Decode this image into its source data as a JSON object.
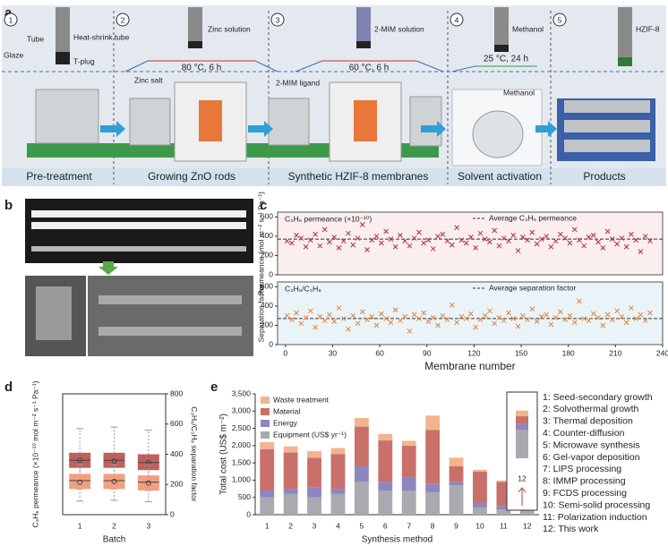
{
  "panel_labels": [
    "a",
    "b",
    "c",
    "d",
    "e"
  ],
  "panel_a": {
    "steps": [
      {
        "number": "1",
        "name": "Pre-treatment"
      },
      {
        "number": "2",
        "name": "Growing ZnO rods"
      },
      {
        "number": "3",
        "name": "Synthetic HZIF-8 membranes"
      },
      {
        "number": "4",
        "name": "Solvent activation"
      },
      {
        "number": "5",
        "name": "Products"
      }
    ],
    "labels": {
      "tube": "Tube",
      "heat_shrink": "Heat-shrink tube",
      "glaze": "Glaze",
      "t_plug": "T-plug",
      "zinc_solution": "Zinc solution",
      "zinc_salt": "Zinc salt",
      "mim_solution": "2-MIM solution",
      "mim_ligand": "2-MIM ligand",
      "methanol_top": "Methanol",
      "methanol_low": "Methanol",
      "hzif": "HZIF-8"
    },
    "conditions": [
      "80 °C, 6 h",
      "60 °C, 6 h",
      "25 °C, 24 h"
    ]
  },
  "chart_data": [
    {
      "type": "scatter",
      "annotation": "C₃H₆ permeance (×10⁻¹⁰)",
      "ylabel": "Permeance (mol m⁻² s⁻¹ Pa⁻¹)",
      "color": "#b0303a",
      "background": "#fbeeee",
      "average": 370,
      "average_label": "Average C₃H₆ permeance",
      "xlim": [
        -5,
        240
      ],
      "ylim": [
        0,
        650
      ],
      "yticks": [
        0,
        200,
        400,
        600
      ],
      "x": [
        1,
        4,
        7,
        10,
        13,
        16,
        19,
        22,
        25,
        28,
        31,
        34,
        37,
        40,
        43,
        46,
        49,
        52,
        55,
        58,
        61,
        64,
        67,
        70,
        73,
        76,
        79,
        82,
        85,
        88,
        91,
        94,
        97,
        100,
        103,
        106,
        109,
        112,
        115,
        118,
        121,
        124,
        127,
        130,
        133,
        136,
        139,
        142,
        145,
        148,
        151,
        154,
        157,
        160,
        163,
        166,
        169,
        172,
        175,
        178,
        181,
        184,
        187,
        190,
        193,
        196,
        199,
        202,
        205,
        208,
        211,
        214,
        217,
        220,
        223,
        226,
        229,
        232
      ],
      "values": [
        350,
        330,
        410,
        380,
        290,
        360,
        420,
        300,
        470,
        340,
        390,
        280,
        350,
        430,
        310,
        380,
        520,
        260,
        360,
        400,
        330,
        450,
        370,
        290,
        410,
        350,
        300,
        380,
        440,
        330,
        360,
        270,
        400,
        420,
        350,
        310,
        490,
        360,
        330,
        390,
        280,
        430,
        370,
        340,
        460,
        300,
        380,
        350,
        410,
        250,
        390,
        360,
        440,
        320,
        370,
        400,
        290,
        350,
        420,
        380,
        330,
        470,
        360,
        300,
        390,
        410,
        340,
        280,
        450,
        370,
        320,
        380,
        290,
        420,
        360,
        240,
        400,
        350
      ]
    },
    {
      "type": "scatter",
      "annotation": "C₃H₆/C₃H₈",
      "ylabel": "Separation factor",
      "xlabel": "Membrane number",
      "color": "#e8803a",
      "background": "#eaf4f8",
      "average": 270,
      "average_label": "Average separation factor",
      "xlim": [
        -5,
        240
      ],
      "ylim": [
        0,
        650
      ],
      "yticks": [
        0,
        200,
        400,
        600
      ],
      "xticks": [
        0,
        30,
        60,
        90,
        120,
        150,
        180,
        210,
        240
      ],
      "x": [
        1,
        4,
        7,
        10,
        13,
        16,
        19,
        22,
        25,
        28,
        31,
        34,
        37,
        40,
        43,
        46,
        49,
        52,
        55,
        58,
        61,
        64,
        67,
        70,
        73,
        76,
        79,
        82,
        85,
        88,
        91,
        94,
        97,
        100,
        103,
        106,
        109,
        112,
        115,
        118,
        121,
        124,
        127,
        130,
        133,
        136,
        139,
        142,
        145,
        148,
        151,
        154,
        157,
        160,
        163,
        166,
        169,
        172,
        175,
        178,
        181,
        184,
        187,
        190,
        193,
        196,
        199,
        202,
        205,
        208,
        211,
        214,
        217,
        220,
        223,
        226,
        229,
        232
      ],
      "values": [
        300,
        260,
        330,
        220,
        280,
        350,
        180,
        290,
        250,
        310,
        240,
        380,
        270,
        160,
        300,
        220,
        340,
        260,
        290,
        200,
        320,
        270,
        230,
        360,
        250,
        290,
        140,
        310,
        270,
        330,
        240,
        280,
        200,
        300,
        260,
        410,
        230,
        290,
        270,
        320,
        180,
        260,
        300,
        350,
        220,
        280,
        250,
        330,
        270,
        190,
        300,
        260,
        370,
        240,
        290,
        310,
        210,
        280,
        340,
        260,
        300,
        230,
        450,
        270,
        250,
        320,
        280,
        200,
        310,
        260,
        350,
        290,
        230,
        380,
        270,
        310,
        250,
        330
      ]
    },
    {
      "type": "box",
      "xlabel": "Batch",
      "ylabel": "C₃H₆ permeance (×10⁻¹⁰ mol m⁻² s⁻¹ Pa⁻¹)",
      "y2label": "C₃H₆/C₃H₈ separation factor",
      "categories": [
        "1",
        "2",
        "3"
      ],
      "ylim": [
        0,
        800
      ],
      "y2lim": [
        0,
        800
      ],
      "y2ticks": [
        0,
        200,
        400,
        600,
        800
      ],
      "series": [
        {
          "color": "#c0605a",
          "boxes": [
            {
              "min": 170,
              "q1": 310,
              "median": 360,
              "q3": 410,
              "max": 570,
              "mean": 360
            },
            {
              "min": 170,
              "q1": 310,
              "median": 360,
              "q3": 410,
              "max": 580,
              "mean": 355
            },
            {
              "min": 160,
              "q1": 295,
              "median": 345,
              "q3": 400,
              "max": 560,
              "mean": 345
            }
          ]
        },
        {
          "color": "#f0a080",
          "axis": "y2",
          "boxes": [
            {
              "min": 90,
              "q1": 170,
              "median": 225,
              "q3": 270,
              "max": 330,
              "mean": 215
            },
            {
              "min": 95,
              "q1": 170,
              "median": 225,
              "q3": 270,
              "max": 330,
              "mean": 220
            },
            {
              "min": 85,
              "q1": 160,
              "median": 215,
              "q3": 260,
              "max": 330,
              "mean": 210
            }
          ]
        }
      ]
    },
    {
      "type": "stacked-bar",
      "xlabel": "Synthesis method",
      "ylabel": "Total cost (US$ m⁻²)",
      "legend": "upper left",
      "categories": [
        "1",
        "2",
        "3",
        "4",
        "5",
        "6",
        "7",
        "8",
        "9",
        "10",
        "11",
        "12"
      ],
      "ylim": [
        0,
        3500
      ],
      "yticks": [
        0,
        500,
        {
          "value": 1000,
          "label": "1,000"
        },
        {
          "value": 1500,
          "label": "1,500"
        },
        {
          "value": 2000,
          "label": "2,000"
        },
        {
          "value": 2500,
          "label": "2,500"
        },
        {
          "value": 3000,
          "label": "3,000"
        },
        {
          "value": 3500,
          "label": "3,500"
        }
      ],
      "inset_ylim": [
        0,
        300
      ],
      "highlight_index": 11,
      "highlight_color": "#c0392b",
      "series": [
        {
          "name": "Equipment (US$ yr⁻¹)",
          "color": "#a9a9b0",
          "values": [
            500,
            600,
            500,
            600,
            950,
            700,
            700,
            650,
            850,
            200,
            150,
            150
          ]
        },
        {
          "name": "Energy",
          "color": "#8e86c0",
          "values": [
            200,
            150,
            300,
            150,
            450,
            250,
            400,
            250,
            100,
            150,
            100,
            30
          ]
        },
        {
          "name": "Material",
          "color": "#c9706a",
          "values": [
            1200,
            1050,
            850,
            1000,
            1150,
            1200,
            900,
            1550,
            450,
            900,
            700,
            40
          ]
        },
        {
          "name": "Waste treatment",
          "color": "#f2b48f",
          "values": [
            200,
            180,
            190,
            180,
            250,
            190,
            140,
            420,
            250,
            50,
            40,
            30
          ]
        }
      ],
      "method_list": [
        "1: Seed-secondary growth",
        "2: Solvothermal growth",
        "3: Thermal deposition",
        "4: Counter-diffusion",
        "5: Microwave synthesis",
        "6: Gel-vapor deposition",
        "7: LIPS processing",
        "8: IMMP processing",
        "9: FCDS processing",
        "10: Semi-solid processing",
        "11: Polarization induction",
        "12: This work"
      ]
    }
  ]
}
